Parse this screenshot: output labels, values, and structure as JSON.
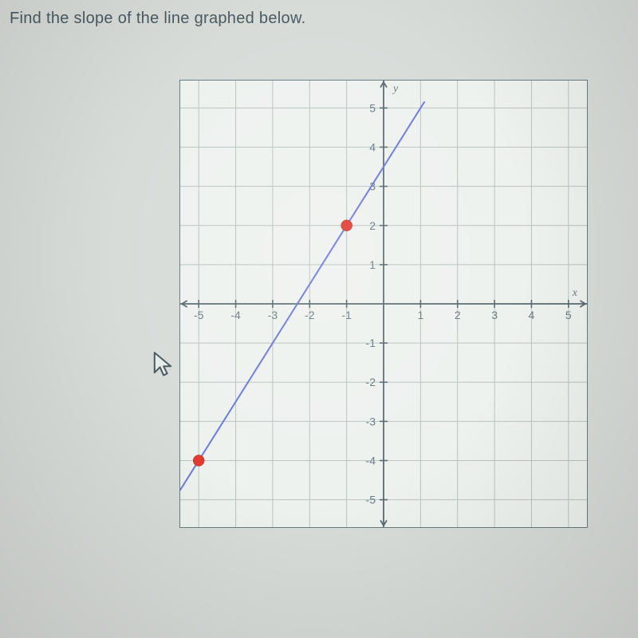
{
  "question": "Find the slope of the line graphed below.",
  "graph": {
    "type": "line",
    "xlim": [
      -5.5,
      5.5
    ],
    "ylim": [
      -5.7,
      5.7
    ],
    "xtick_step": 1,
    "ytick_step": 1,
    "x_tick_labels": [
      "-5",
      "-4",
      "-3",
      "-2",
      "-1",
      "1",
      "2",
      "3",
      "4",
      "5"
    ],
    "y_tick_labels": [
      "-5",
      "-4",
      "-3",
      "-2",
      "-1",
      "1",
      "2",
      "3",
      "4",
      "5"
    ],
    "x_axis_label": "x",
    "y_axis_label": "y",
    "background_color": "#eef2ef",
    "grid_color": "#b9c3c0",
    "axis_color": "#5a6a6f",
    "label_color": "#6b7b80",
    "axis_label_fontsize": 14,
    "tick_label_fontsize": 14,
    "line": {
      "points_through": [
        [
          -5,
          -4
        ],
        [
          -1,
          2
        ]
      ],
      "extend_from_x": -5.5,
      "extend_to_x": 1.1,
      "color": "#6a78e0",
      "width": 2
    },
    "marked_points": [
      {
        "x": -1,
        "y": 2,
        "color": "#e23b2f",
        "radius": 7
      },
      {
        "x": -5,
        "y": -4,
        "color": "#e23b2f",
        "radius": 7
      }
    ]
  },
  "page_background": "#d8dcd9"
}
